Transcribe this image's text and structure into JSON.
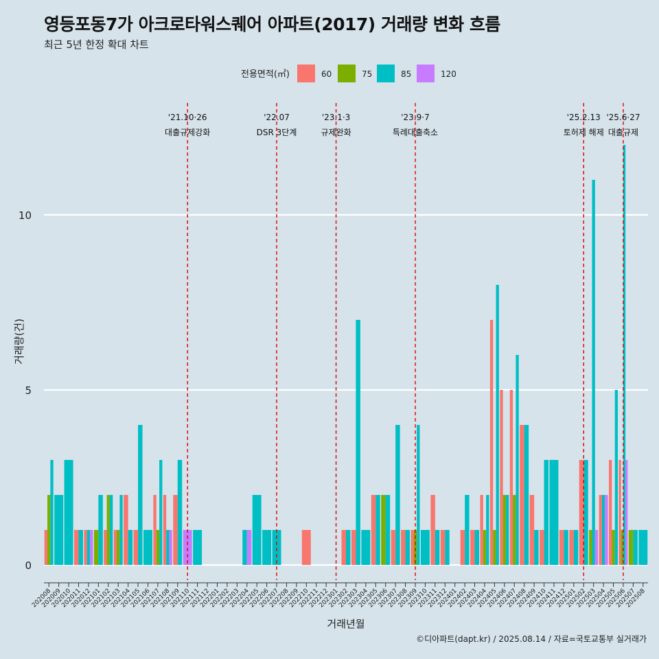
{
  "title": "영등포동7가 아크로타워스퀘어 아파트(2017) 거래량 변화 흐름",
  "subtitle": "최근 5년 한정 확대 차트",
  "caption": "©디아파트(dapt.kr) / 2025.08.14 / 자료=국토교통부 실거래가",
  "chart_data": {
    "type": "bar",
    "xlabel": "거래년월",
    "ylabel": "거래량(건)",
    "ylim": [
      0,
      12
    ],
    "y_ticks": [
      0,
      5,
      10
    ],
    "grid": "horizontal major lines only",
    "legend": {
      "title": "전용면적(㎡)",
      "position": "top",
      "entries": [
        {
          "name": "60",
          "color": "#F8766D"
        },
        {
          "name": "75",
          "color": "#7CAE00"
        },
        {
          "name": "85",
          "color": "#00BFC4"
        },
        {
          "name": "120",
          "color": "#C77CFF"
        }
      ]
    },
    "categories": [
      "202008",
      "202009",
      "202010",
      "202011",
      "202012",
      "202101",
      "202102",
      "202103",
      "202104",
      "202105",
      "202106",
      "202107",
      "202108",
      "202109",
      "202110",
      "202111",
      "202112",
      "202201",
      "202202",
      "202203",
      "202204",
      "202205",
      "202206",
      "202207",
      "202208",
      "202209",
      "202210",
      "202211",
      "202212",
      "202301",
      "202302",
      "202303",
      "202304",
      "202305",
      "202306",
      "202307",
      "202308",
      "202309",
      "202310",
      "202311",
      "202312",
      "202401",
      "202402",
      "202403",
      "202404",
      "202405",
      "202406",
      "202407",
      "202408",
      "202409",
      "202410",
      "202411",
      "202412",
      "202501",
      "202502",
      "202503",
      "202504",
      "202505",
      "202506",
      "202507",
      "202508"
    ],
    "series": [
      {
        "name": "60",
        "color": "#F8766D",
        "values": [
          1,
          0,
          0,
          1,
          1,
          0,
          1,
          1,
          2,
          1,
          0,
          2,
          2,
          2,
          0,
          0,
          0,
          0,
          0,
          0,
          0,
          0,
          0,
          0,
          0,
          0,
          1,
          0,
          0,
          0,
          1,
          1,
          0,
          2,
          0,
          1,
          1,
          1,
          0,
          2,
          1,
          0,
          1,
          1,
          2,
          7,
          5,
          5,
          4,
          2,
          1,
          0,
          1,
          1,
          3,
          0,
          2,
          3,
          3,
          0,
          0
        ]
      },
      {
        "name": "75",
        "color": "#7CAE00",
        "values": [
          2,
          0,
          0,
          0,
          0,
          1,
          2,
          1,
          0,
          0,
          0,
          1,
          0,
          0,
          0,
          0,
          0,
          0,
          0,
          0,
          0,
          0,
          0,
          0,
          0,
          0,
          0,
          0,
          0,
          0,
          0,
          0,
          0,
          0,
          2,
          0,
          0,
          1,
          0,
          0,
          0,
          0,
          0,
          0,
          1,
          1,
          2,
          2,
          0,
          0,
          0,
          0,
          0,
          0,
          0,
          1,
          0,
          1,
          1,
          1,
          0
        ]
      },
      {
        "name": "85",
        "color": "#00BFC4",
        "values": [
          3,
          2,
          3,
          1,
          1,
          2,
          2,
          2,
          1,
          4,
          1,
          3,
          1,
          3,
          0,
          1,
          0,
          0,
          0,
          0,
          1,
          2,
          1,
          1,
          0,
          0,
          0,
          0,
          0,
          0,
          1,
          7,
          1,
          2,
          2,
          4,
          1,
          4,
          1,
          1,
          1,
          0,
          2,
          1,
          2,
          8,
          2,
          6,
          4,
          1,
          3,
          3,
          1,
          1,
          3,
          11,
          2,
          5,
          12,
          1,
          1
        ]
      },
      {
        "name": "120",
        "color": "#C77CFF",
        "values": [
          0,
          0,
          0,
          0,
          1,
          0,
          0,
          0,
          0,
          0,
          0,
          0,
          1,
          0,
          1,
          0,
          0,
          0,
          0,
          0,
          1,
          0,
          0,
          0,
          0,
          0,
          0,
          0,
          0,
          0,
          0,
          0,
          0,
          0,
          0,
          0,
          0,
          0,
          0,
          0,
          0,
          0,
          0,
          0,
          0,
          0,
          0,
          0,
          0,
          0,
          0,
          0,
          0,
          0,
          0,
          1,
          2,
          0,
          3,
          0,
          0
        ]
      }
    ],
    "annotations": [
      {
        "category": "202110",
        "date": "'21.10·26",
        "label": "대출규제강화"
      },
      {
        "category": "202207",
        "date": "'22.07",
        "label": "DSR 3단계"
      },
      {
        "category": "202301",
        "date": "'23.1·3",
        "label": "규제완화"
      },
      {
        "category": "202309",
        "date": "'23.9·7",
        "label": "특례대출축소"
      },
      {
        "category": "202502",
        "date": "'25.2.13",
        "label": "토허제 해제"
      },
      {
        "category": "202506",
        "date": "'25.6·27",
        "label": "대출규제"
      }
    ]
  }
}
